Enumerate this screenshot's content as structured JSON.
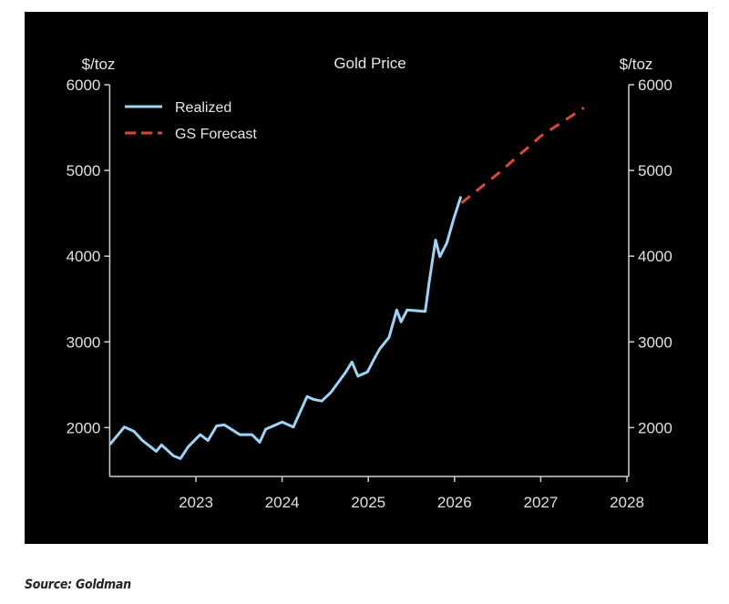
{
  "chart_data": {
    "type": "line",
    "title": "Gold Price",
    "ylabel_left": "$/toz",
    "ylabel_right": "$/toz",
    "xlabel": "",
    "xlim": [
      2022,
      2028
    ],
    "ylim": [
      1430,
      6000
    ],
    "x_ticks": [
      "2023",
      "2024",
      "2025",
      "2026",
      "2027",
      "2028"
    ],
    "y_ticks": [
      "2000",
      "3000",
      "4000",
      "5000",
      "6000"
    ],
    "grid": false,
    "legend_position": "top-left",
    "background": "#000000",
    "series": [
      {
        "name": "Realized",
        "color": "#9fd3f5",
        "style": "solid",
        "x": [
          2022.01,
          2022.17,
          2022.28,
          2022.38,
          2022.54,
          2022.6,
          2022.74,
          2022.82,
          2022.91,
          2023.05,
          2023.14,
          2023.24,
          2023.33,
          2023.51,
          2023.65,
          2023.74,
          2023.81,
          2024.0,
          2024.13,
          2024.29,
          2024.36,
          2024.46,
          2024.57,
          2024.74,
          2024.81,
          2024.88,
          2024.99,
          2025.06,
          2025.13,
          2025.24,
          2025.33,
          2025.38,
          2025.45,
          2025.66,
          2025.71,
          2025.78,
          2025.83,
          2025.91,
          2025.99,
          2026.07
        ],
        "y": [
          1812,
          2007,
          1957,
          1850,
          1723,
          1798,
          1670,
          1638,
          1777,
          1918,
          1850,
          2020,
          2032,
          1918,
          1918,
          1830,
          1982,
          2064,
          2007,
          2362,
          2330,
          2310,
          2415,
          2650,
          2765,
          2600,
          2650,
          2787,
          2915,
          3053,
          3372,
          3234,
          3372,
          3355,
          3728,
          4188,
          3994,
          4152,
          4436,
          4684
        ]
      },
      {
        "name": "GS Forecast",
        "color": "#d9483b",
        "style": "dashed",
        "x": [
          2026.08,
          2026.5,
          2027.0,
          2027.5
        ],
        "y": [
          4620,
          4960,
          5400,
          5730
        ]
      }
    ]
  },
  "source": "Source: Goldman"
}
